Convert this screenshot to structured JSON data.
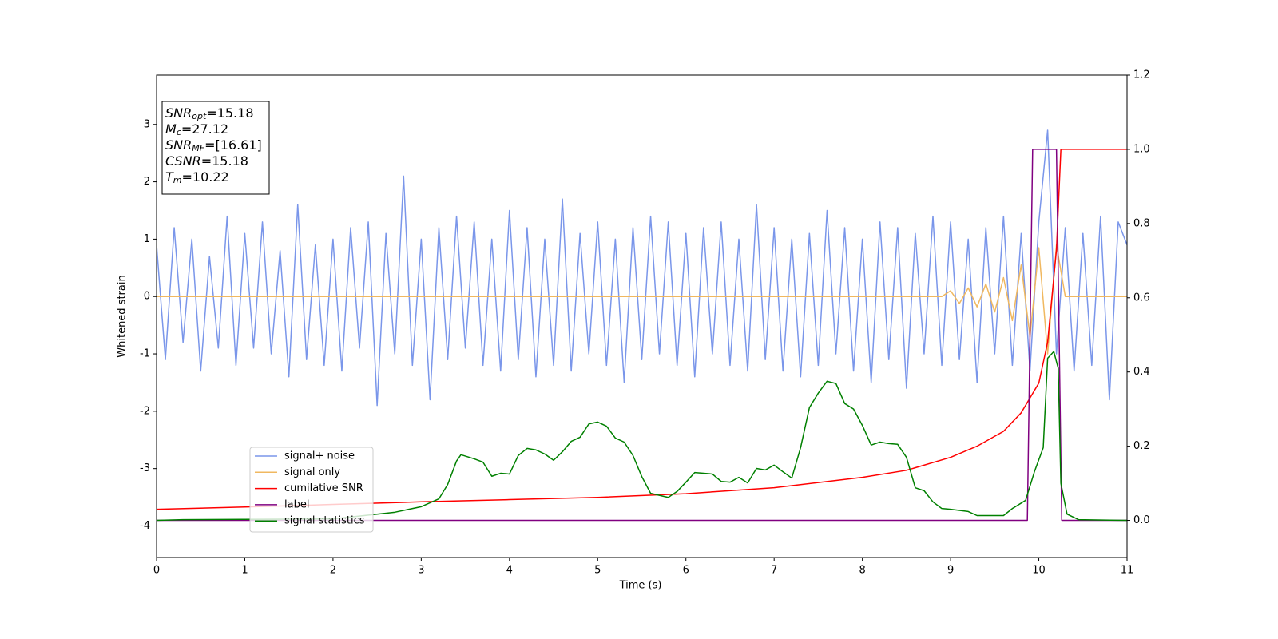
{
  "chart_data": {
    "type": "line",
    "xlabel": "Time (s)",
    "ylabel": "Whitened strain",
    "xlim": [
      0,
      11
    ],
    "ylim": [
      -4.55,
      3.86
    ],
    "y2lim": [
      -0.1,
      1.2
    ],
    "xticks": [
      0,
      1,
      2,
      3,
      4,
      5,
      6,
      7,
      8,
      9,
      10,
      11
    ],
    "yticks": [
      -4,
      -3,
      -2,
      -1,
      0,
      1,
      2,
      3
    ],
    "y2ticks": [
      {
        "value": 0.0,
        "label": "0.0"
      },
      {
        "value": 0.2,
        "label": "0.2"
      },
      {
        "value": 0.4,
        "label": "0.4"
      },
      {
        "value": 0.6,
        "label": "0.6"
      },
      {
        "value": 0.8,
        "label": "0.8"
      },
      {
        "value": 1.0,
        "label": "1.0"
      },
      {
        "value": 1.2,
        "label": "1.2"
      }
    ],
    "legend": "lower left",
    "annotations": [
      {
        "symbol": "SNR",
        "sub": "opt",
        "text": "=15.18"
      },
      {
        "symbol": "M",
        "sub": "c",
        "text": "=27.12"
      },
      {
        "symbol": "SNR",
        "sub": "MF",
        "text": "=[16.61]"
      },
      {
        "symbol": "CSNR",
        "text": "=15.18"
      },
      {
        "symbol": "T",
        "sub": "m",
        "text": "=10.22"
      }
    ],
    "series": [
      {
        "name": "signal+ noise",
        "color": "#7a96ea",
        "axis": "y",
        "x": [
          0,
          0.1,
          0.2,
          0.3,
          0.4,
          0.5,
          0.6,
          0.7,
          0.8,
          0.9,
          1,
          1.1,
          1.2,
          1.3,
          1.4,
          1.5,
          1.6,
          1.7,
          1.8,
          1.9,
          2,
          2.1,
          2.2,
          2.3,
          2.4,
          2.5,
          2.6,
          2.7,
          2.8,
          2.9,
          3,
          3.1,
          3.2,
          3.3,
          3.4,
          3.5,
          3.6,
          3.7,
          3.8,
          3.9,
          4,
          4.1,
          4.2,
          4.3,
          4.4,
          4.5,
          4.6,
          4.7,
          4.8,
          4.9,
          5,
          5.1,
          5.2,
          5.3,
          5.4,
          5.5,
          5.6,
          5.7,
          5.8,
          5.9,
          6,
          6.1,
          6.2,
          6.3,
          6.4,
          6.5,
          6.6,
          6.7,
          6.8,
          6.9,
          7,
          7.1,
          7.2,
          7.3,
          7.4,
          7.5,
          7.6,
          7.7,
          7.8,
          7.9,
          8,
          8.1,
          8.2,
          8.3,
          8.4,
          8.5,
          8.6,
          8.7,
          8.8,
          8.9,
          9,
          9.1,
          9.2,
          9.3,
          9.4,
          9.5,
          9.6,
          9.7,
          9.8,
          9.9,
          10,
          10.1,
          10.2,
          10.3,
          10.4,
          10.5,
          10.6,
          10.7,
          10.8,
          10.9,
          11
        ],
        "values": [
          0.9,
          -1.1,
          1.2,
          -0.8,
          1.0,
          -1.3,
          0.7,
          -0.9,
          1.4,
          -1.2,
          1.1,
          -0.9,
          1.3,
          -1.0,
          0.8,
          -1.4,
          1.6,
          -1.1,
          0.9,
          -1.2,
          1.0,
          -1.3,
          1.2,
          -0.9,
          1.3,
          -1.9,
          1.1,
          -1.0,
          2.1,
          -1.2,
          1.0,
          -1.8,
          1.2,
          -1.1,
          1.4,
          -0.9,
          1.3,
          -1.2,
          1.0,
          -1.3,
          1.5,
          -1.1,
          1.2,
          -1.4,
          1.0,
          -1.2,
          1.7,
          -1.3,
          1.1,
          -1.0,
          1.3,
          -1.2,
          1.0,
          -1.5,
          1.2,
          -1.1,
          1.4,
          -1.0,
          1.3,
          -1.2,
          1.1,
          -1.4,
          1.2,
          -1.0,
          1.3,
          -1.2,
          1.0,
          -1.3,
          1.6,
          -1.1,
          1.2,
          -1.3,
          1.0,
          -1.4,
          1.1,
          -1.2,
          1.5,
          -1.0,
          1.2,
          -1.3,
          1.0,
          -1.5,
          1.3,
          -1.1,
          1.2,
          -1.6,
          1.1,
          -1.0,
          1.4,
          -1.2,
          1.3,
          -1.1,
          1.0,
          -1.5,
          1.2,
          -1.0,
          1.4,
          -1.2,
          1.1,
          -1.3,
          1.3,
          2.9,
          -1.0,
          1.2,
          -1.3,
          1.1,
          -1.2,
          1.4,
          -1.8,
          1.3,
          0.9
        ]
      },
      {
        "name": "signal only",
        "color": "#f0b860",
        "axis": "y",
        "x": [
          0,
          0.1,
          0.2,
          0.3,
          0.4,
          0.5,
          0.6,
          0.7,
          0.8,
          0.9,
          1,
          1.1,
          1.2,
          1.3,
          1.4,
          1.5,
          1.6,
          1.7,
          1.8,
          1.9,
          2,
          2.1,
          2.2,
          2.3,
          2.4,
          2.5,
          2.6,
          2.7,
          2.8,
          2.9,
          3,
          3.1,
          3.2,
          3.3,
          3.4,
          3.5,
          3.6,
          3.7,
          3.8,
          3.9,
          4,
          4.1,
          4.2,
          4.3,
          4.4,
          4.5,
          4.6,
          4.7,
          4.8,
          4.9,
          5,
          5.1,
          5.2,
          5.3,
          5.4,
          5.5,
          5.6,
          5.7,
          5.8,
          5.9,
          6,
          6.1,
          6.2,
          6.3,
          6.4,
          6.5,
          6.6,
          6.7,
          6.8,
          6.9,
          7,
          7.1,
          7.2,
          7.3,
          7.4,
          7.5,
          7.6,
          7.7,
          7.8,
          7.9,
          8,
          8.1,
          8.2,
          8.3,
          8.4,
          8.5,
          8.6,
          8.7,
          8.8,
          8.9,
          9,
          9.1,
          9.2,
          9.3,
          9.4,
          9.5,
          9.6,
          9.7,
          9.8,
          9.9,
          10,
          10.1,
          10.2,
          10.3,
          10.4,
          10.5,
          10.6,
          10.7,
          10.8,
          10.9,
          11
        ],
        "values": [
          0,
          0,
          0,
          0,
          0,
          0,
          0,
          0,
          0,
          0,
          0,
          0,
          0,
          0,
          0,
          0,
          0,
          0,
          0,
          0,
          0,
          0,
          0,
          0,
          0,
          0,
          0,
          0,
          0,
          0,
          0,
          0,
          0,
          0,
          0,
          0,
          0,
          0,
          0,
          0,
          0,
          0,
          0,
          0,
          0,
          0,
          0,
          0,
          0,
          0,
          0,
          0,
          0,
          0,
          0,
          0,
          0,
          0,
          0,
          0,
          0,
          0,
          0,
          0,
          0,
          0,
          0,
          0,
          0,
          0,
          0,
          0,
          0,
          0,
          0,
          0,
          0,
          0,
          0,
          0,
          0,
          0,
          0,
          0,
          0,
          0,
          0,
          0,
          0,
          0,
          0.1,
          -0.12,
          0.15,
          -0.18,
          0.22,
          -0.27,
          0.33,
          -0.42,
          0.55,
          -0.7,
          0.85,
          -1.0,
          0.9,
          0,
          0,
          0,
          0,
          0,
          0,
          0,
          0
        ]
      },
      {
        "name": "cumilative SNR",
        "color": "#ff0000",
        "axis": "y2",
        "x": [
          0,
          1,
          2,
          3,
          4,
          5,
          6,
          7,
          8,
          8.5,
          9,
          9.3,
          9.6,
          9.8,
          10,
          10.1,
          10.2,
          10.25,
          11
        ],
        "values": [
          0.03,
          0.036,
          0.043,
          0.05,
          0.056,
          0.062,
          0.072,
          0.088,
          0.116,
          0.135,
          0.17,
          0.2,
          0.24,
          0.29,
          0.37,
          0.48,
          0.73,
          1.0,
          1.0
        ]
      },
      {
        "name": "label",
        "color": "#800080",
        "axis": "y2",
        "x": [
          0,
          9.87,
          9.93,
          10.2,
          10.26,
          11
        ],
        "values": [
          0,
          0,
          1,
          1,
          0,
          0
        ]
      },
      {
        "name": "signal statistics",
        "color": "#008000",
        "axis": "y2",
        "x": [
          0,
          0.3,
          2,
          2.7,
          3,
          3.2,
          3.3,
          3.4,
          3.45,
          3.6,
          3.7,
          3.8,
          3.9,
          4,
          4.1,
          4.2,
          4.3,
          4.4,
          4.5,
          4.6,
          4.7,
          4.8,
          4.9,
          5,
          5.1,
          5.2,
          5.3,
          5.4,
          5.5,
          5.6,
          5.8,
          5.9,
          6,
          6.1,
          6.2,
          6.3,
          6.4,
          6.5,
          6.6,
          6.7,
          6.8,
          6.9,
          7,
          7.1,
          7.2,
          7.3,
          7.4,
          7.5,
          7.6,
          7.7,
          7.8,
          7.9,
          8,
          8.1,
          8.2,
          8.3,
          8.4,
          8.5,
          8.6,
          8.7,
          8.8,
          8.9,
          9,
          9.2,
          9.3,
          9.6,
          9.7,
          9.85,
          9.95,
          10.05,
          10.1,
          10.17,
          10.22,
          10.25,
          10.32,
          10.45,
          11
        ],
        "values": [
          0,
          0.002,
          0.004,
          0.022,
          0.037,
          0.058,
          0.097,
          0.16,
          0.177,
          0.166,
          0.157,
          0.119,
          0.127,
          0.125,
          0.175,
          0.194,
          0.19,
          0.179,
          0.162,
          0.185,
          0.213,
          0.224,
          0.26,
          0.265,
          0.254,
          0.222,
          0.211,
          0.175,
          0.118,
          0.073,
          0.062,
          0.078,
          0.103,
          0.129,
          0.127,
          0.125,
          0.105,
          0.103,
          0.116,
          0.101,
          0.14,
          0.136,
          0.149,
          0.131,
          0.114,
          0.196,
          0.304,
          0.343,
          0.375,
          0.369,
          0.315,
          0.3,
          0.256,
          0.203,
          0.211,
          0.207,
          0.205,
          0.17,
          0.088,
          0.08,
          0.05,
          0.032,
          0.03,
          0.024,
          0.013,
          0.013,
          0.032,
          0.054,
          0.131,
          0.196,
          0.437,
          0.455,
          0.41,
          0.1,
          0.017,
          0.002,
          0
        ]
      }
    ]
  }
}
